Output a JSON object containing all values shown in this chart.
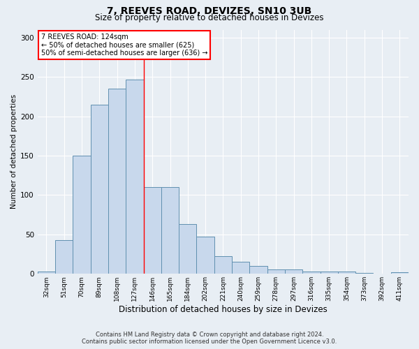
{
  "title1": "7, REEVES ROAD, DEVIZES, SN10 3UB",
  "title2": "Size of property relative to detached houses in Devizes",
  "xlabel": "Distribution of detached houses by size in Devizes",
  "ylabel": "Number of detached properties",
  "categories": [
    "32sqm",
    "51sqm",
    "70sqm",
    "89sqm",
    "108sqm",
    "127sqm",
    "146sqm",
    "165sqm",
    "184sqm",
    "202sqm",
    "221sqm",
    "240sqm",
    "259sqm",
    "278sqm",
    "297sqm",
    "316sqm",
    "335sqm",
    "354sqm",
    "373sqm",
    "392sqm",
    "411sqm"
  ],
  "values": [
    3,
    43,
    150,
    215,
    235,
    247,
    110,
    110,
    63,
    47,
    22,
    15,
    10,
    6,
    6,
    3,
    3,
    3,
    1,
    0,
    2
  ],
  "bar_color": "#c8d8ec",
  "bar_edge_color": "#6090b0",
  "red_line_x": 5.5,
  "annotation_text": "7 REEVES ROAD: 124sqm\n← 50% of detached houses are smaller (625)\n50% of semi-detached houses are larger (636) →",
  "footer1": "Contains HM Land Registry data © Crown copyright and database right 2024.",
  "footer2": "Contains public sector information licensed under the Open Government Licence v3.0.",
  "ylim": [
    0,
    310
  ],
  "yticks": [
    0,
    50,
    100,
    150,
    200,
    250,
    300
  ],
  "background_color": "#e8eef4",
  "grid_color": "#ffffff"
}
